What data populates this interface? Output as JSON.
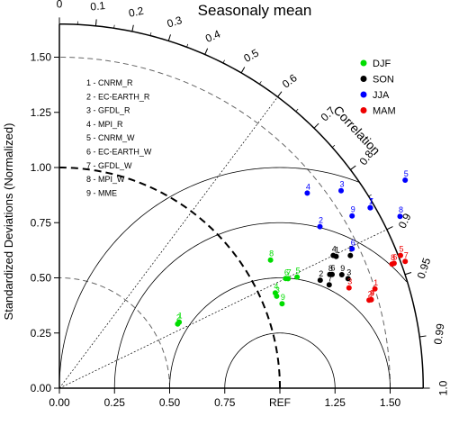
{
  "chart_data": {
    "type": "scatter",
    "title": "Seasonaly mean",
    "ylabel": "Standardized Deviations (Normalized)",
    "arc_label": "Correlation",
    "xlim": [
      0,
      1.65
    ],
    "ylim": [
      0,
      1.65
    ],
    "x_ticks": [
      "0.00",
      "0.25",
      "0.50",
      "0.75",
      "REF",
      "1.25",
      "1.50"
    ],
    "y_ticks": [
      "0.00",
      "0.25",
      "0.50",
      "0.75",
      "1.00",
      "1.25",
      "1.50"
    ],
    "correlation_ticks": [
      "0",
      "0.1",
      "0.2",
      "0.3",
      "0.4",
      "0.5",
      "0.6",
      "0.7",
      "0.8",
      "0.9",
      "0.95",
      "0.99",
      "1.0"
    ],
    "models": [
      "1 - CNRM_R",
      "2 - EC-EARTH_R",
      "3 - GFDL_R",
      "4 - MPI_R",
      "5 - CNRM_W",
      "6 - EC-EARTH_W",
      "7 - GFDL_W",
      "8 - MPI_W",
      "9 - MME"
    ],
    "legend_position": "top-right",
    "series": [
      {
        "name": "DJF",
        "color": "#00dd00",
        "points": [
          {
            "label": "1",
            "std": 0.62,
            "corr": 0.876
          },
          {
            "label": "2",
            "std": 0.61,
            "corr": 0.879
          },
          {
            "label": "3",
            "std": 1.07,
            "corr": 0.921
          },
          {
            "label": "4",
            "std": 1.07,
            "corr": 0.915
          },
          {
            "label": "5",
            "std": 1.19,
            "corr": 0.906
          },
          {
            "label": "6",
            "std": 1.14,
            "corr": 0.9
          },
          {
            "label": "7",
            "std": 1.15,
            "corr": 0.902
          },
          {
            "label": "8",
            "std": 1.12,
            "corr": 0.855
          },
          {
            "label": "9",
            "std": 1.08,
            "corr": 0.935
          }
        ]
      },
      {
        "name": "SON",
        "color": "#000000",
        "points": [
          {
            "label": "1",
            "std": 1.39,
            "corr": 0.903
          },
          {
            "label": "2",
            "std": 1.28,
            "corr": 0.924
          },
          {
            "label": "3",
            "std": 1.4,
            "corr": 0.935
          },
          {
            "label": "4",
            "std": 1.38,
            "corr": 0.9
          },
          {
            "label": "5",
            "std": 1.45,
            "corr": 0.91
          },
          {
            "label": "6",
            "std": 1.34,
            "corr": 0.923
          },
          {
            "label": "7",
            "std": 1.31,
            "corr": 0.934
          },
          {
            "label": "8",
            "std": 1.33,
            "corr": 0.922
          },
          {
            "label": "9",
            "std": 1.38,
            "corr": 0.928
          }
        ]
      },
      {
        "name": "JJA",
        "color": "#0000ff",
        "points": [
          {
            "label": "1",
            "std": 1.63,
            "corr": 0.865
          },
          {
            "label": "2",
            "std": 1.39,
            "corr": 0.85
          },
          {
            "label": "3",
            "std": 1.56,
            "corr": 0.819
          },
          {
            "label": "4",
            "std": 1.43,
            "corr": 0.786
          },
          {
            "label": "5",
            "std": 1.83,
            "corr": 0.857
          },
          {
            "label": "6",
            "std": 1.47,
            "corr": 0.903
          },
          {
            "label": "7",
            "std": 1.63,
            "corr": 0.865
          },
          {
            "label": "8",
            "std": 1.73,
            "corr": 0.893
          },
          {
            "label": "9",
            "std": 1.54,
            "corr": 0.862
          }
        ]
      },
      {
        "name": "MAM",
        "color": "#ee0000",
        "points": [
          {
            "label": "1",
            "std": 1.5,
            "corr": 0.954
          },
          {
            "label": "2",
            "std": 1.46,
            "corr": 0.962
          },
          {
            "label": "3",
            "std": 1.39,
            "corr": 0.945
          },
          {
            "label": "4",
            "std": 1.47,
            "corr": 0.962
          },
          {
            "label": "5",
            "std": 1.66,
            "corr": 0.932
          },
          {
            "label": "6",
            "std": 1.62,
            "corr": 0.937
          },
          {
            "label": "7",
            "std": 1.67,
            "corr": 0.939
          },
          {
            "label": "8",
            "std": 1.61,
            "corr": 0.937
          },
          {
            "label": "9",
            "std": 1.47,
            "corr": 0.962
          }
        ]
      }
    ]
  }
}
